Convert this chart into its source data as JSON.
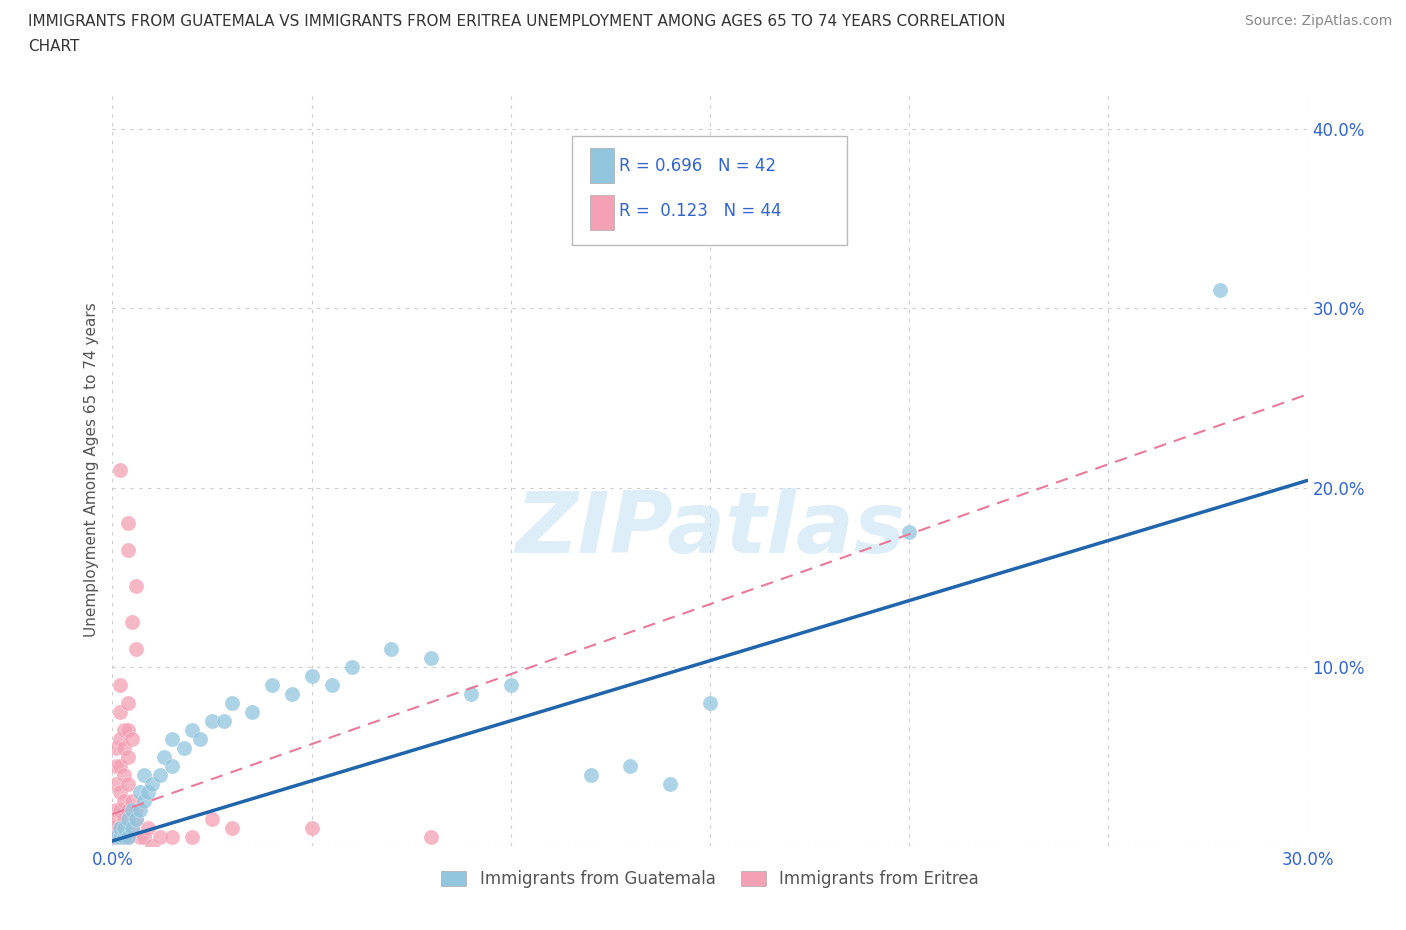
{
  "title_line1": "IMMIGRANTS FROM GUATEMALA VS IMMIGRANTS FROM ERITREA UNEMPLOYMENT AMONG AGES 65 TO 74 YEARS CORRELATION",
  "title_line2": "CHART",
  "source": "Source: ZipAtlas.com",
  "ylabel": "Unemployment Among Ages 65 to 74 years",
  "xlim": [
    0.0,
    0.3
  ],
  "ylim": [
    0.0,
    0.42
  ],
  "guatemala_color": "#92c5de",
  "eritrea_color": "#f4a0b5",
  "guatemala_line_color": "#2166ac",
  "eritrea_line_color": "#e87a9a",
  "guatemala_R": 0.696,
  "guatemala_N": 42,
  "eritrea_R": 0.123,
  "eritrea_N": 44,
  "watermark": "ZIPatlas",
  "background_color": "#ffffff",
  "grid_color": "#cccccc",
  "legend_text_color": "#3366cc",
  "axis_tick_color": "#3366cc",
  "ylabel_color": "#555555",
  "guatemala_points": [
    [
      0.001,
      0.005
    ],
    [
      0.002,
      0.005
    ],
    [
      0.002,
      0.01
    ],
    [
      0.003,
      0.005
    ],
    [
      0.003,
      0.01
    ],
    [
      0.004,
      0.005
    ],
    [
      0.004,
      0.015
    ],
    [
      0.005,
      0.01
    ],
    [
      0.005,
      0.02
    ],
    [
      0.006,
      0.015
    ],
    [
      0.007,
      0.02
    ],
    [
      0.007,
      0.03
    ],
    [
      0.008,
      0.025
    ],
    [
      0.008,
      0.04
    ],
    [
      0.009,
      0.03
    ],
    [
      0.01,
      0.035
    ],
    [
      0.012,
      0.04
    ],
    [
      0.013,
      0.05
    ],
    [
      0.015,
      0.06
    ],
    [
      0.015,
      0.045
    ],
    [
      0.018,
      0.055
    ],
    [
      0.02,
      0.065
    ],
    [
      0.022,
      0.06
    ],
    [
      0.025,
      0.07
    ],
    [
      0.028,
      0.07
    ],
    [
      0.03,
      0.08
    ],
    [
      0.035,
      0.075
    ],
    [
      0.04,
      0.09
    ],
    [
      0.045,
      0.085
    ],
    [
      0.05,
      0.095
    ],
    [
      0.055,
      0.09
    ],
    [
      0.06,
      0.1
    ],
    [
      0.07,
      0.11
    ],
    [
      0.08,
      0.105
    ],
    [
      0.09,
      0.085
    ],
    [
      0.1,
      0.09
    ],
    [
      0.12,
      0.04
    ],
    [
      0.13,
      0.045
    ],
    [
      0.14,
      0.035
    ],
    [
      0.15,
      0.08
    ],
    [
      0.2,
      0.175
    ],
    [
      0.278,
      0.31
    ]
  ],
  "eritrea_points": [
    [
      0.0,
      0.005
    ],
    [
      0.0,
      0.01
    ],
    [
      0.001,
      0.005
    ],
    [
      0.001,
      0.015
    ],
    [
      0.001,
      0.02
    ],
    [
      0.001,
      0.035
    ],
    [
      0.001,
      0.045
    ],
    [
      0.001,
      0.055
    ],
    [
      0.002,
      0.005
    ],
    [
      0.002,
      0.01
    ],
    [
      0.002,
      0.02
    ],
    [
      0.002,
      0.03
    ],
    [
      0.002,
      0.045
    ],
    [
      0.002,
      0.06
    ],
    [
      0.002,
      0.075
    ],
    [
      0.002,
      0.09
    ],
    [
      0.003,
      0.005
    ],
    [
      0.003,
      0.015
    ],
    [
      0.003,
      0.025
    ],
    [
      0.003,
      0.04
    ],
    [
      0.003,
      0.055
    ],
    [
      0.003,
      0.065
    ],
    [
      0.004,
      0.005
    ],
    [
      0.004,
      0.02
    ],
    [
      0.004,
      0.035
    ],
    [
      0.004,
      0.05
    ],
    [
      0.004,
      0.065
    ],
    [
      0.004,
      0.08
    ],
    [
      0.005,
      0.01
    ],
    [
      0.005,
      0.025
    ],
    [
      0.005,
      0.06
    ],
    [
      0.006,
      0.015
    ],
    [
      0.006,
      0.02
    ],
    [
      0.007,
      0.005
    ],
    [
      0.008,
      0.005
    ],
    [
      0.009,
      0.01
    ],
    [
      0.01,
      0.0
    ],
    [
      0.012,
      0.005
    ],
    [
      0.015,
      0.005
    ],
    [
      0.02,
      0.005
    ],
    [
      0.025,
      0.015
    ],
    [
      0.03,
      0.01
    ],
    [
      0.05,
      0.01
    ],
    [
      0.08,
      0.005
    ]
  ],
  "eritrea_high_points": [
    [
      0.002,
      0.21
    ],
    [
      0.004,
      0.18
    ],
    [
      0.004,
      0.165
    ],
    [
      0.006,
      0.145
    ],
    [
      0.005,
      0.125
    ],
    [
      0.006,
      0.11
    ]
  ]
}
